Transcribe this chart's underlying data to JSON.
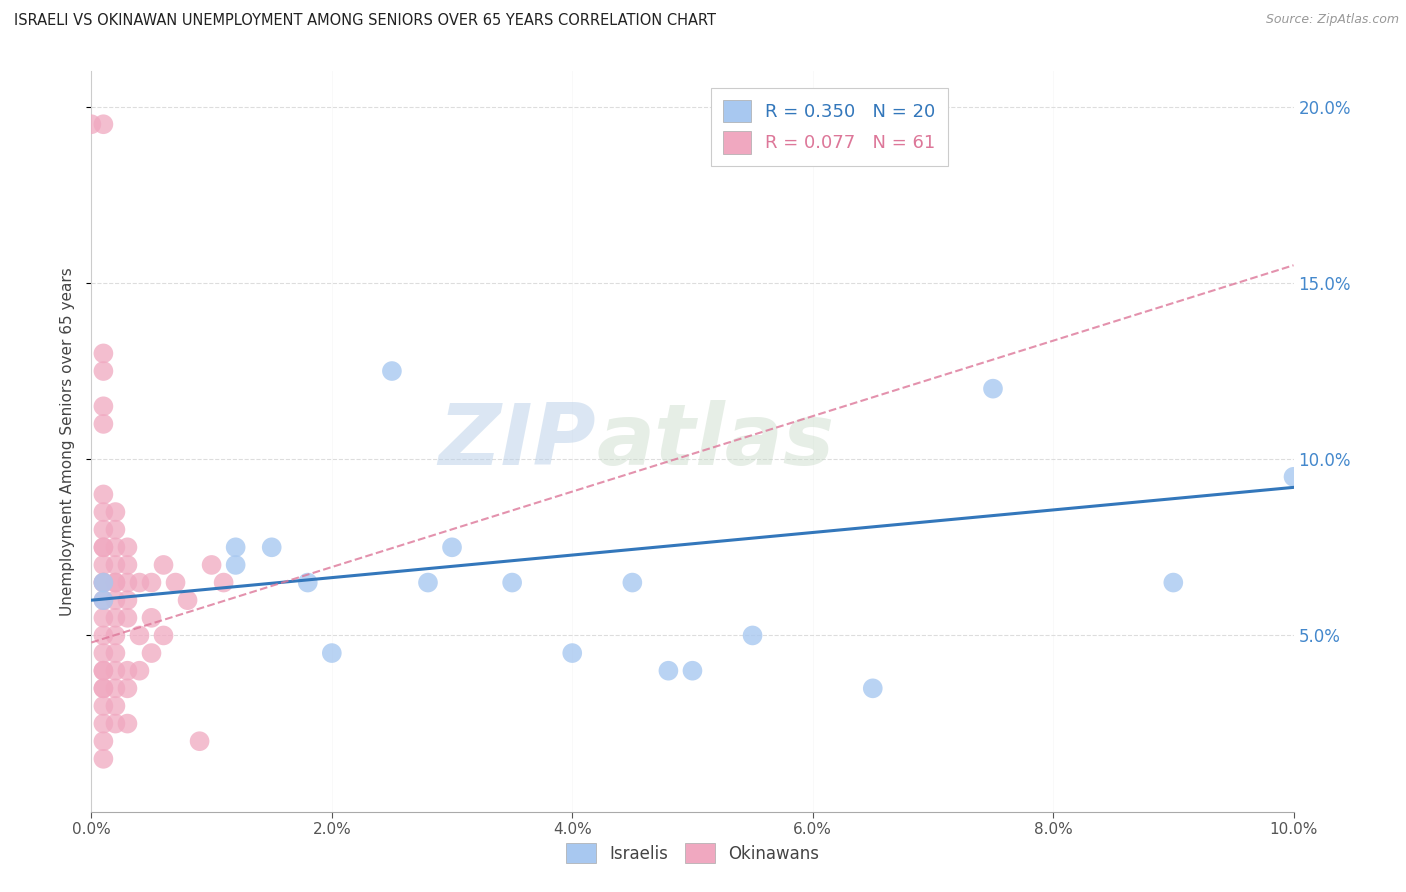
{
  "title": "ISRAELI VS OKINAWAN UNEMPLOYMENT AMONG SENIORS OVER 65 YEARS CORRELATION CHART",
  "source": "Source: ZipAtlas.com",
  "ylabel": "Unemployment Among Seniors over 65 years",
  "xlabel": "",
  "xlim": [
    0.0,
    0.1
  ],
  "ylim": [
    0.0,
    0.21
  ],
  "yticks": [
    0.05,
    0.1,
    0.15,
    0.2
  ],
  "xticks": [
    0.0,
    0.02,
    0.04,
    0.06,
    0.08,
    0.1
  ],
  "israeli_R": 0.35,
  "israeli_N": 20,
  "okinawan_R": 0.077,
  "okinawan_N": 61,
  "israeli_color": "#a8c8f0",
  "okinawan_color": "#f0a8c0",
  "israeli_line_color": "#3377bb",
  "okinawan_line_color": "#dd7799",
  "watermark_zip": "ZIP",
  "watermark_atlas": "atlas",
  "israeli_points": [
    [
      0.001,
      0.065
    ],
    [
      0.001,
      0.06
    ],
    [
      0.012,
      0.07
    ],
    [
      0.012,
      0.075
    ],
    [
      0.015,
      0.075
    ],
    [
      0.018,
      0.065
    ],
    [
      0.02,
      0.045
    ],
    [
      0.025,
      0.125
    ],
    [
      0.028,
      0.065
    ],
    [
      0.03,
      0.075
    ],
    [
      0.035,
      0.065
    ],
    [
      0.04,
      0.045
    ],
    [
      0.045,
      0.065
    ],
    [
      0.048,
      0.04
    ],
    [
      0.05,
      0.04
    ],
    [
      0.055,
      0.05
    ],
    [
      0.065,
      0.035
    ],
    [
      0.075,
      0.12
    ],
    [
      0.09,
      0.065
    ],
    [
      0.1,
      0.095
    ]
  ],
  "okinawan_points": [
    [
      0.0,
      0.195
    ],
    [
      0.001,
      0.195
    ],
    [
      0.001,
      0.13
    ],
    [
      0.001,
      0.125
    ],
    [
      0.001,
      0.115
    ],
    [
      0.001,
      0.11
    ],
    [
      0.001,
      0.09
    ],
    [
      0.001,
      0.085
    ],
    [
      0.001,
      0.08
    ],
    [
      0.001,
      0.075
    ],
    [
      0.001,
      0.075
    ],
    [
      0.001,
      0.07
    ],
    [
      0.001,
      0.065
    ],
    [
      0.001,
      0.065
    ],
    [
      0.001,
      0.06
    ],
    [
      0.001,
      0.055
    ],
    [
      0.001,
      0.05
    ],
    [
      0.001,
      0.045
    ],
    [
      0.001,
      0.04
    ],
    [
      0.001,
      0.04
    ],
    [
      0.001,
      0.035
    ],
    [
      0.001,
      0.035
    ],
    [
      0.001,
      0.03
    ],
    [
      0.001,
      0.025
    ],
    [
      0.001,
      0.02
    ],
    [
      0.001,
      0.015
    ],
    [
      0.002,
      0.085
    ],
    [
      0.002,
      0.08
    ],
    [
      0.002,
      0.075
    ],
    [
      0.002,
      0.07
    ],
    [
      0.002,
      0.065
    ],
    [
      0.002,
      0.065
    ],
    [
      0.002,
      0.06
    ],
    [
      0.002,
      0.055
    ],
    [
      0.002,
      0.05
    ],
    [
      0.002,
      0.045
    ],
    [
      0.002,
      0.04
    ],
    [
      0.002,
      0.035
    ],
    [
      0.002,
      0.03
    ],
    [
      0.002,
      0.025
    ],
    [
      0.003,
      0.075
    ],
    [
      0.003,
      0.07
    ],
    [
      0.003,
      0.065
    ],
    [
      0.003,
      0.06
    ],
    [
      0.003,
      0.055
    ],
    [
      0.003,
      0.04
    ],
    [
      0.003,
      0.035
    ],
    [
      0.003,
      0.025
    ],
    [
      0.004,
      0.065
    ],
    [
      0.004,
      0.05
    ],
    [
      0.004,
      0.04
    ],
    [
      0.005,
      0.065
    ],
    [
      0.005,
      0.055
    ],
    [
      0.005,
      0.045
    ],
    [
      0.006,
      0.07
    ],
    [
      0.006,
      0.05
    ],
    [
      0.007,
      0.065
    ],
    [
      0.008,
      0.06
    ],
    [
      0.009,
      0.02
    ],
    [
      0.01,
      0.07
    ],
    [
      0.011,
      0.065
    ]
  ],
  "background_color": "#ffffff",
  "grid_color": "#dddddd",
  "israeli_line_x": [
    0.0,
    0.1
  ],
  "israeli_line_y": [
    0.06,
    0.092
  ],
  "okinawan_line_x": [
    0.0,
    0.1
  ],
  "okinawan_line_y": [
    0.048,
    0.155
  ]
}
